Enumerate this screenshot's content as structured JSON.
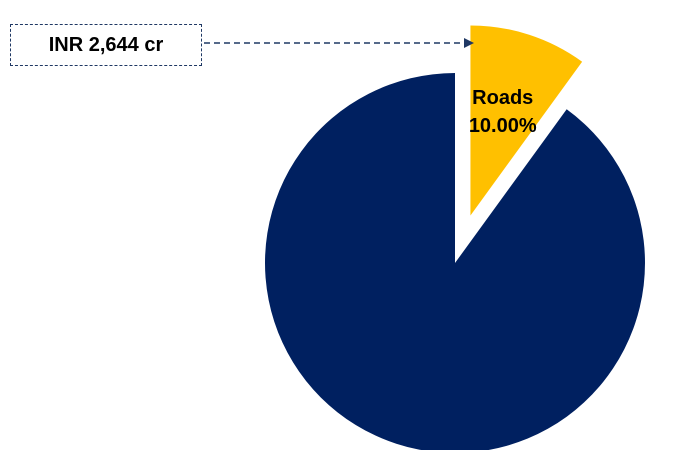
{
  "chart_data": {
    "type": "pie",
    "slices": [
      {
        "name": "Roads",
        "value": 10.0,
        "value_label": "10.00%",
        "color": "#FFC000",
        "exploded": true
      },
      {
        "name": "",
        "value": 90.0,
        "color": "#002060",
        "exploded": false
      }
    ],
    "start_angle_deg": 0,
    "direction": "clockwise",
    "callout": {
      "text": "INR 2,644 cr",
      "target": "Roads",
      "border_color": "#1F3864",
      "style": "dashed-box-with-dashed-arrow"
    }
  }
}
